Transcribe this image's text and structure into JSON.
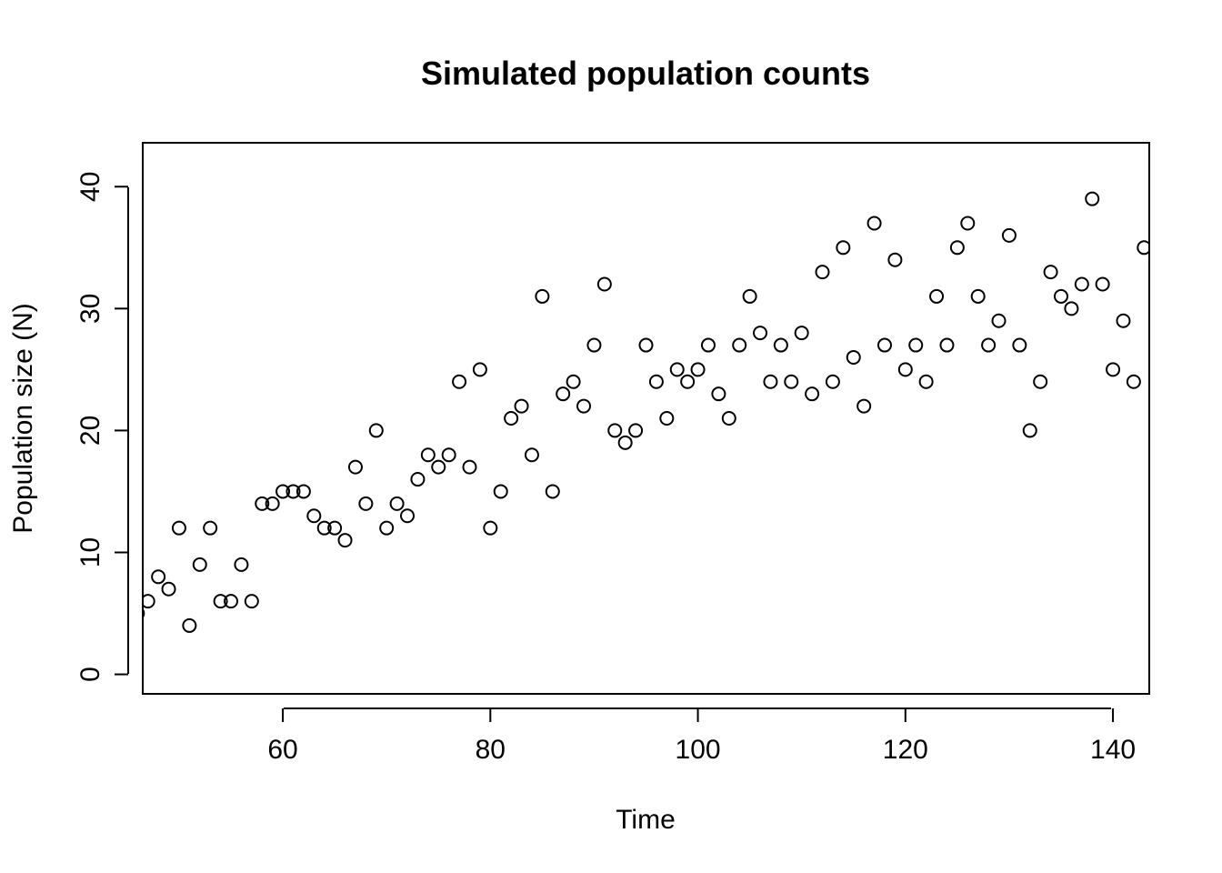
{
  "chart_data": {
    "type": "scatter",
    "title": "Simulated population counts",
    "xlabel": "Time",
    "ylabel": "Population size (N)",
    "xlim": [
      46.5,
      143.5
    ],
    "ylim": [
      -1.6,
      43.6
    ],
    "xticks": [
      60,
      80,
      100,
      120,
      140
    ],
    "yticks": [
      0,
      10,
      20,
      30,
      40
    ],
    "grid": false,
    "legend": "none",
    "marker": "open-circle",
    "x": [
      46,
      47,
      48,
      49,
      50,
      51,
      52,
      53,
      54,
      55,
      56,
      57,
      58,
      59,
      60,
      61,
      62,
      63,
      64,
      65,
      66,
      67,
      68,
      69,
      70,
      71,
      72,
      73,
      74,
      75,
      76,
      77,
      78,
      79,
      80,
      81,
      82,
      83,
      84,
      85,
      86,
      87,
      88,
      89,
      90,
      91,
      92,
      93,
      94,
      95,
      96,
      97,
      98,
      99,
      100,
      101,
      102,
      103,
      104,
      105,
      106,
      107,
      108,
      109,
      110,
      111,
      112,
      113,
      114,
      115,
      116,
      117,
      118,
      119,
      120,
      121,
      122,
      123,
      124,
      125,
      126,
      127,
      128,
      129,
      130,
      131,
      132,
      133,
      134,
      135,
      136,
      137,
      138,
      139,
      140,
      141,
      142,
      143
    ],
    "y": [
      5,
      6,
      8,
      7,
      12,
      4,
      9,
      12,
      6,
      6,
      9,
      6,
      14,
      14,
      15,
      15,
      15,
      13,
      12,
      12,
      11,
      17,
      14,
      20,
      12,
      14,
      13,
      16,
      18,
      17,
      18,
      24,
      17,
      25,
      12,
      15,
      21,
      22,
      18,
      31,
      15,
      23,
      24,
      22,
      27,
      32,
      20,
      19,
      20,
      27,
      24,
      21,
      25,
      24,
      25,
      27,
      23,
      21,
      27,
      31,
      28,
      24,
      27,
      24,
      28,
      23,
      33,
      24,
      35,
      26,
      22,
      37,
      27,
      34,
      25,
      27,
      24,
      31,
      27,
      35,
      37,
      31,
      27,
      29,
      36,
      27,
      20,
      24,
      33,
      31,
      30,
      32,
      39,
      32,
      25,
      29,
      24,
      35
    ]
  }
}
